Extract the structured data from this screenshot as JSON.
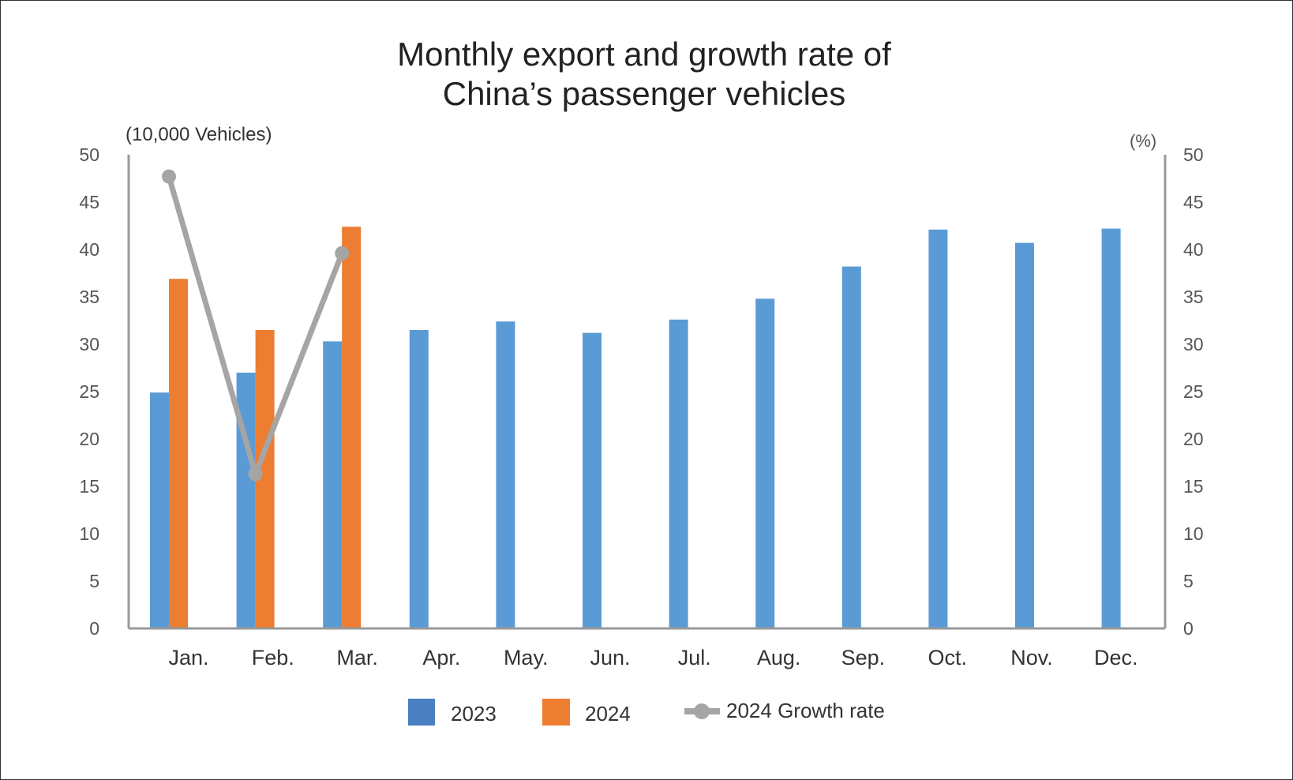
{
  "chart_data": {
    "type": "bar",
    "title_lines": [
      "Monthly export and growth rate of",
      "China’s passenger vehicles"
    ],
    "ylabel_left": "(10,000 Vehicles)",
    "ylabel_right": "(%)",
    "ylim": [
      0,
      50
    ],
    "y2lim": [
      0,
      50
    ],
    "yticks": [
      "0",
      "5",
      "10",
      "15",
      "20",
      "25",
      "30",
      "35",
      "40",
      "45",
      "50"
    ],
    "categories": [
      "Jan.",
      "Feb.",
      "Mar.",
      "Apr.",
      "May.",
      "Jun.",
      "Jul.",
      "Aug.",
      "Sep.",
      "Oct.",
      "Nov.",
      "Dec."
    ],
    "series": [
      {
        "name": "2023",
        "type": "bar",
        "color": "#5b9bd5",
        "values": [
          24.9,
          27.0,
          30.3,
          31.5,
          32.4,
          31.2,
          32.6,
          34.8,
          38.2,
          42.1,
          40.7,
          42.2
        ]
      },
      {
        "name": "2024",
        "type": "bar",
        "color": "#ed7d31",
        "values": [
          36.9,
          31.5,
          42.4,
          null,
          null,
          null,
          null,
          null,
          null,
          null,
          null,
          null
        ]
      },
      {
        "name": "2024 Growth rate",
        "type": "line",
        "axis": "right",
        "color": "#a5a5a5",
        "values": [
          47.7,
          16.3,
          39.6,
          null,
          null,
          null,
          null,
          null,
          null,
          null,
          null,
          null
        ]
      }
    ],
    "grid": false,
    "legend": "bottom"
  }
}
